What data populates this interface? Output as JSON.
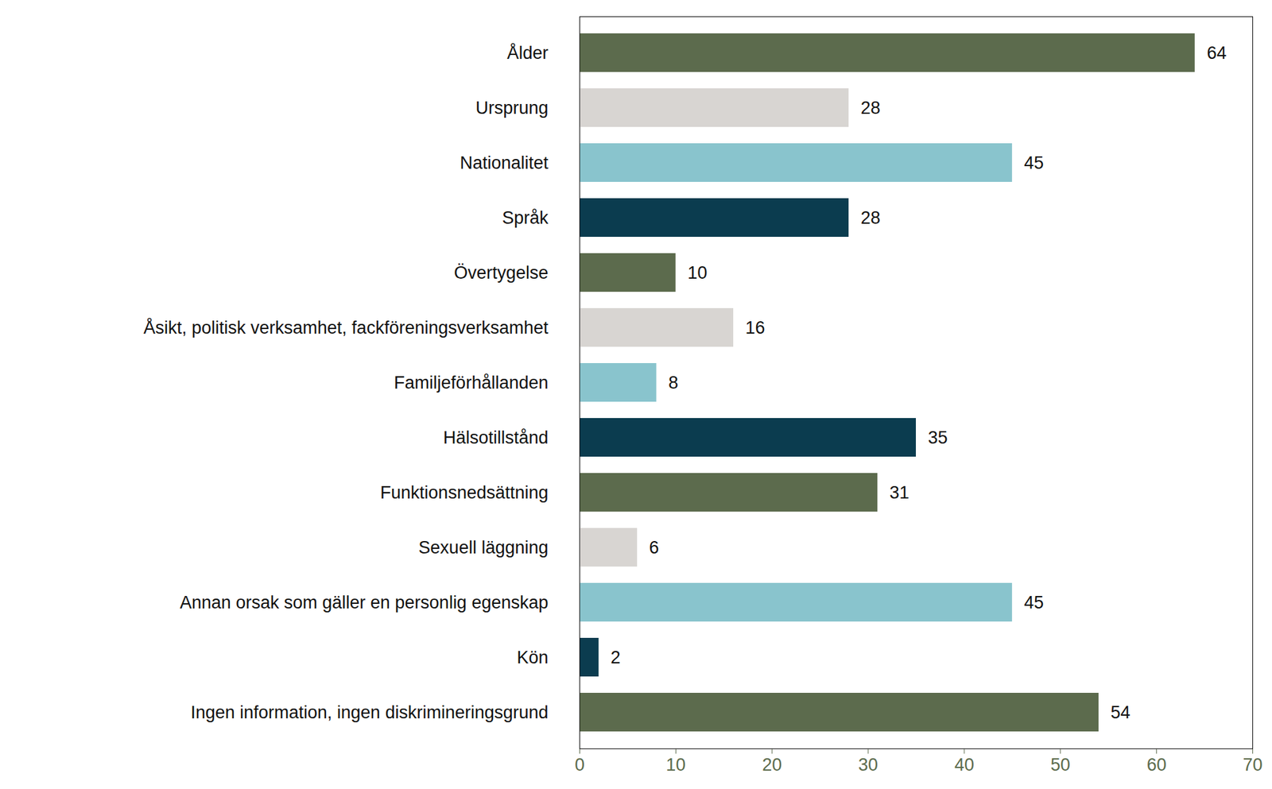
{
  "chart_data": {
    "type": "bar",
    "orientation": "horizontal",
    "categories": [
      "Ålder",
      "Ursprung",
      "Nationalitet",
      "Språk",
      "Övertygelse",
      "Åsikt, politisk verksamhet, fackföreningsverksamhet",
      "Familjeförhållanden",
      "Hälsotillstånd",
      "Funktionsnedsättning",
      "Sexuell läggning",
      "Annan orsak som gäller en personlig egenskap",
      "Kön",
      "Ingen information, ingen diskrimineringsgrund"
    ],
    "values": [
      64,
      28,
      45,
      28,
      10,
      16,
      8,
      35,
      31,
      6,
      45,
      2,
      54
    ],
    "colors": [
      "#5c6b4d",
      "#d8d5d2",
      "#89c4cd",
      "#0b3c4f",
      "#5c6b4d",
      "#d8d5d2",
      "#89c4cd",
      "#0b3c4f",
      "#5c6b4d",
      "#d8d5d2",
      "#89c4cd",
      "#0b3c4f",
      "#5c6b4d"
    ],
    "xlim": [
      0,
      70
    ],
    "xticks": [
      0,
      10,
      20,
      30,
      40,
      50,
      60,
      70
    ],
    "grid": false,
    "data_labels": true
  }
}
